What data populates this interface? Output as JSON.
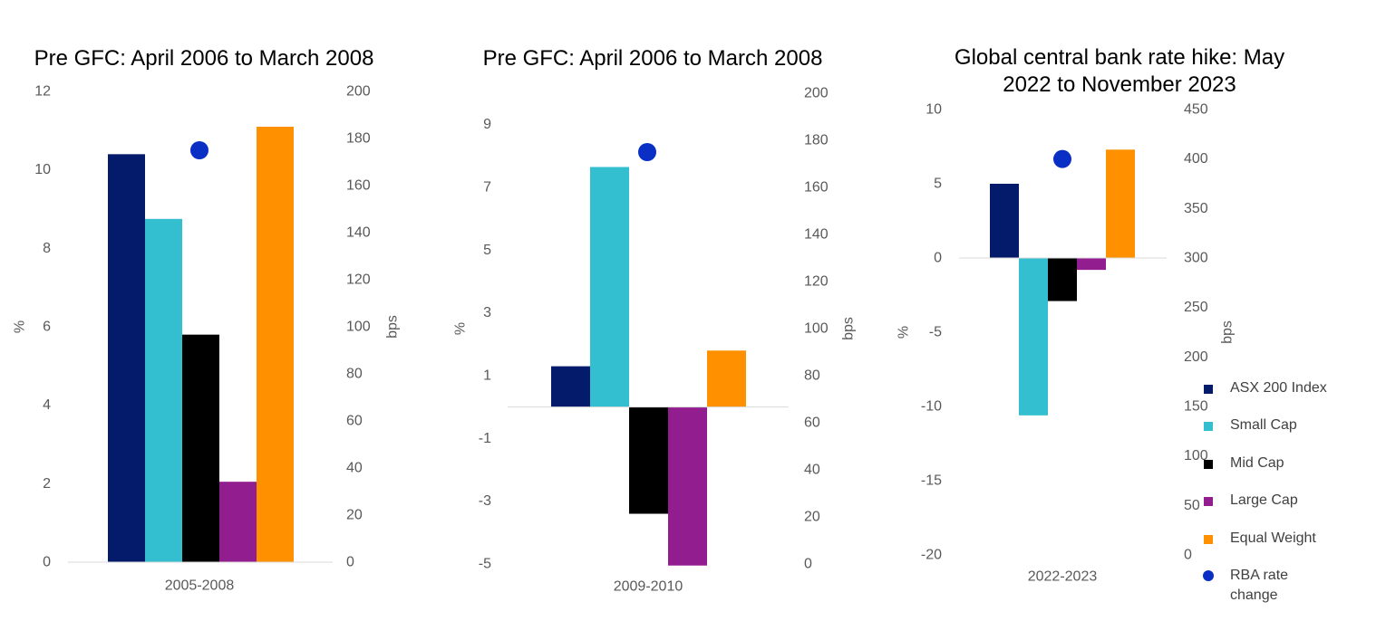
{
  "chart_data": [
    {
      "type": "bar",
      "title": "Pre GFC: April 2006 to March 2008",
      "categories": [
        "2005-2008"
      ],
      "ylabel": "%",
      "y2label": "bps",
      "ylim": [
        0,
        12
      ],
      "yticks": [
        "0",
        "2",
        "4",
        "6",
        "8",
        "10",
        "12"
      ],
      "y2lim": [
        0,
        200
      ],
      "y2ticks": [
        "0",
        "20",
        "40",
        "60",
        "80",
        "100",
        "120",
        "140",
        "160",
        "180",
        "200"
      ],
      "series": [
        {
          "name": "ASX 200 Index",
          "values": [
            10.4
          ]
        },
        {
          "name": "Small Cap",
          "values": [
            8.75
          ]
        },
        {
          "name": "Mid Cap",
          "values": [
            5.8
          ]
        },
        {
          "name": "Large Cap",
          "values": [
            2.05
          ]
        },
        {
          "name": "Equal Weight",
          "values": [
            11.1
          ]
        }
      ],
      "marker": {
        "name": "RBA rate change",
        "axis": "secondary",
        "value": 175
      }
    },
    {
      "type": "bar",
      "title": "Pre GFC: April 2006 to March 2008",
      "categories": [
        "2009-2010"
      ],
      "ylabel": "%",
      "y2label": "bps",
      "ylim": [
        -5,
        10
      ],
      "yticks": [
        "-5",
        "-3",
        "-1",
        "1",
        "3",
        "5",
        "7",
        "9"
      ],
      "y2lim": [
        0,
        200
      ],
      "y2ticks": [
        "0",
        "20",
        "40",
        "60",
        "80",
        "100",
        "120",
        "140",
        "160",
        "180",
        "200"
      ],
      "series": [
        {
          "name": "ASX 200 Index",
          "values": [
            1.3
          ]
        },
        {
          "name": "Small Cap",
          "values": [
            7.65
          ]
        },
        {
          "name": "Mid Cap",
          "values": [
            -3.4
          ]
        },
        {
          "name": "Large Cap",
          "values": [
            -5.05
          ]
        },
        {
          "name": "Equal Weight",
          "values": [
            1.8
          ]
        }
      ],
      "marker": {
        "name": "RBA rate change",
        "axis": "secondary",
        "value": 175
      }
    },
    {
      "type": "bar",
      "title": "Global central bank rate hike: May 2022 to November 2023",
      "categories": [
        "2022-2023"
      ],
      "ylabel": "%",
      "y2label": "bps",
      "ylim": [
        -20,
        10
      ],
      "yticks": [
        "-20",
        "-15",
        "-10",
        "-5",
        "0",
        "5",
        "10"
      ],
      "y2lim": [
        0,
        450
      ],
      "y2ticks": [
        "0",
        "50",
        "100",
        "150",
        "200",
        "250",
        "300",
        "350",
        "400",
        "450"
      ],
      "series": [
        {
          "name": "ASX 200 Index",
          "values": [
            5.0
          ]
        },
        {
          "name": "Small Cap",
          "values": [
            -10.6
          ]
        },
        {
          "name": "Mid Cap",
          "values": [
            -2.9
          ]
        },
        {
          "name": "Large Cap",
          "values": [
            -0.8
          ]
        },
        {
          "name": "Equal Weight",
          "values": [
            7.3
          ]
        }
      ],
      "marker": {
        "name": "RBA rate change",
        "axis": "secondary",
        "value": 400
      }
    }
  ],
  "titles": [
    "Pre GFC: April 2006 to March 2008",
    "Pre GFC: April 2006 to March 2008",
    "Global central bank rate hike: May 2022 to November 2023"
  ],
  "legend": {
    "items": [
      {
        "label": "ASX 200 Index",
        "color": "#041a6b",
        "shape": "square"
      },
      {
        "label": "Small Cap",
        "color": "#33bfcf",
        "shape": "square"
      },
      {
        "label": "Mid Cap",
        "color": "#000000",
        "shape": "square"
      },
      {
        "label": "Large Cap",
        "color": "#921d8f",
        "shape": "square"
      },
      {
        "label": "Equal Weight",
        "color": "#ff9100",
        "shape": "square"
      },
      {
        "label": "RBA rate change",
        "color": "#0a2fc4",
        "shape": "circle"
      }
    ]
  },
  "colors": {
    "axis_line": "#d9d9d9",
    "tick_text": "#595959",
    "title_text": "#000000"
  }
}
